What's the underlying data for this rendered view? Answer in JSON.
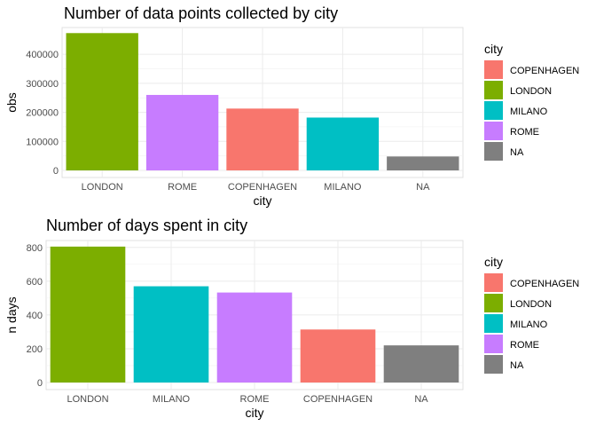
{
  "chart_data": [
    {
      "type": "bar",
      "title": "Number of data points collected by city",
      "xlabel": "city",
      "ylabel": "obs",
      "ylim": [
        0,
        480000
      ],
      "yticks": [
        0,
        100000,
        200000,
        300000,
        400000
      ],
      "ytick_labels": [
        "0",
        "100000",
        "200000",
        "300000",
        "400000"
      ],
      "categories": [
        "LONDON",
        "ROME",
        "COPENHAGEN",
        "MILANO",
        "NA"
      ],
      "values": [
        473000,
        260000,
        213000,
        182000,
        48000
      ],
      "legend": {
        "title": "city",
        "placement": "right",
        "items": [
          "COPENHAGEN",
          "LONDON",
          "MILANO",
          "ROME",
          "NA"
        ]
      },
      "grid": true
    },
    {
      "type": "bar",
      "title": "Number of days spent in city",
      "xlabel": "city",
      "ylabel": "n days",
      "ylim": [
        0,
        820
      ],
      "yticks": [
        0,
        200,
        400,
        600,
        800
      ],
      "ytick_labels": [
        "0",
        "200",
        "400",
        "600",
        "800"
      ],
      "categories": [
        "LONDON",
        "MILANO",
        "ROME",
        "COPENHAGEN",
        "NA"
      ],
      "values": [
        805,
        570,
        533,
        314,
        220
      ],
      "legend": {
        "title": "city",
        "placement": "right",
        "items": [
          "COPENHAGEN",
          "LONDON",
          "MILANO",
          "ROME",
          "NA"
        ]
      },
      "grid": true
    }
  ],
  "colors": {
    "COPENHAGEN": "#F8766D",
    "LONDON": "#7CAE00",
    "MILANO": "#00BFC4",
    "ROME": "#C77CFF",
    "NA": "#7F7F7F"
  }
}
